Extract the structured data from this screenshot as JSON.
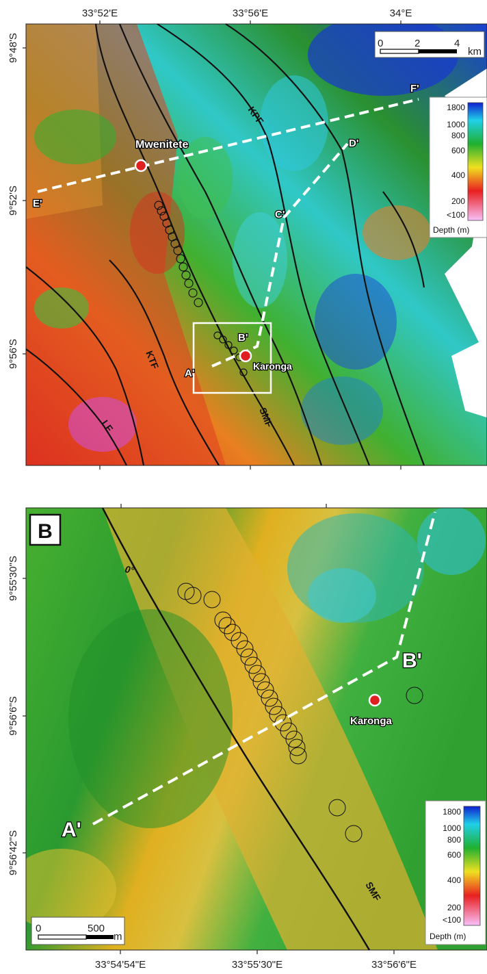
{
  "panel_a": {
    "ticks_top": [
      "33°52'E",
      "33°56'E",
      "34°E"
    ],
    "ticks_left": [
      "9°48'S",
      "9°52'S",
      "9°56'S"
    ],
    "scale_bar": {
      "ticks": [
        "0",
        "2",
        "4"
      ],
      "unit": "km"
    },
    "places": {
      "mwenitete": "Mwenitete",
      "karonga": "Karonga"
    },
    "faults": {
      "kpf": "KPF",
      "ktf": "KTF",
      "smf": "SMF",
      "lf": "LF"
    },
    "profiles": {
      "a": "A'",
      "b": "B'",
      "c": "C'",
      "d": "D'",
      "e": "E'",
      "f": "F'"
    },
    "legend": {
      "ticks": [
        "1800",
        "1000",
        "800",
        "600",
        "400",
        "200",
        "<100"
      ],
      "title": "Depth (m)"
    }
  },
  "panel_b": {
    "panel_label": "B",
    "ticks_bottom": [
      "33°54'54\"E",
      "33°55'30\"E",
      "33°56'6\"E"
    ],
    "ticks_left": [
      "9°55'30\"S",
      "9°56'6\"S",
      "9°56'42\"S"
    ],
    "contour_label": "0°",
    "fault_label": "SMF",
    "place": "Karonga",
    "profiles": {
      "a": "A'",
      "b": "B'"
    },
    "scale_bar": {
      "ticks": [
        "0",
        "500"
      ],
      "unit": "m"
    },
    "legend": {
      "ticks": [
        "1800",
        "1000",
        "800",
        "600",
        "400",
        "200",
        "<100"
      ],
      "title": "Depth (m)"
    }
  },
  "colors": {
    "deep": "#1030d8",
    "cyan": "#20d8e8",
    "green": "#20a830",
    "yellow": "#f0e020",
    "orange": "#f08020",
    "red": "#e02020",
    "magenta": "#e060e0"
  }
}
